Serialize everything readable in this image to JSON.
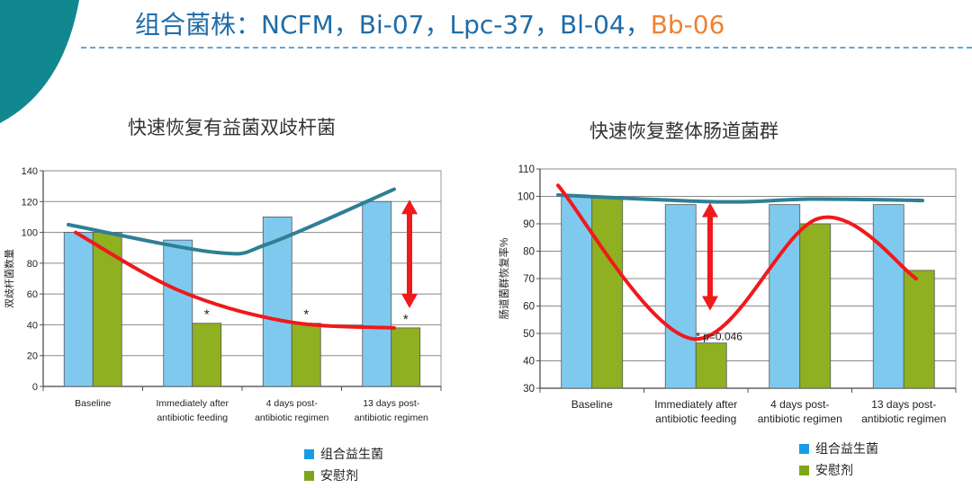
{
  "slide_title": {
    "prefix": "组合菌株：NCFM，Bi-07，Lpc-37，Bl-04，",
    "highlight": "Bb-06"
  },
  "colors": {
    "probiotic": "#7fc9ef",
    "placebo": "#8fb021",
    "trend_probiotic": "#2f7f95",
    "trend_placebo": "#f0191c",
    "teal_corner": "#11878f",
    "title_blue": "#1f6ca8",
    "title_orange": "#ef8133"
  },
  "chart_data": [
    {
      "type": "bar",
      "title": "快速恢复有益菌双歧杆菌",
      "ylabel": "双歧杆菌数量",
      "xlabel": "",
      "ylim": [
        0,
        140
      ],
      "yticks": [
        "0",
        "20",
        "40",
        "60",
        "80",
        "100",
        "120",
        "140"
      ],
      "categories": [
        [
          "Baseline"
        ],
        [
          "Immediately after",
          "antibiotic feeding"
        ],
        [
          "4 days post-",
          "antibiotic regimen"
        ],
        [
          "13 days post-",
          "antibiotic regimen"
        ]
      ],
      "series": [
        {
          "name": "组合益生菌",
          "values": [
            100,
            95,
            110,
            120
          ]
        },
        {
          "name": "安慰剂",
          "values": [
            100,
            41,
            41,
            38
          ]
        }
      ],
      "annotations": [
        "*",
        "*",
        "*"
      ],
      "trend_lines": {
        "probiotic": [
          105,
          87,
          93,
          128
        ],
        "placebo": [
          100,
          62,
          42,
          38
        ]
      },
      "arrow_range": [
        120,
        52
      ],
      "legend": [
        "组合益生菌",
        "安慰剂"
      ],
      "grid": true,
      "legend_position": "bottom"
    },
    {
      "type": "bar",
      "title": "快速恢复整体肠道菌群",
      "ylabel": "肠道菌群恢复率%",
      "xlabel": "",
      "ylim": [
        30,
        110
      ],
      "yticks": [
        "30",
        "40",
        "50",
        "60",
        "70",
        "80",
        "90",
        "100",
        "110"
      ],
      "categories": [
        [
          "Baseline"
        ],
        [
          "Immediately after",
          "antibiotic feeding"
        ],
        [
          "4 days post-",
          "antibiotic regimen"
        ],
        [
          "13 days post-",
          "antibiotic regimen"
        ]
      ],
      "series": [
        {
          "name": "组合益生菌",
          "values": [
            100,
            97,
            97,
            97
          ]
        },
        {
          "name": "安慰剂",
          "values": [
            100,
            46.5,
            90,
            73
          ]
        }
      ],
      "annotations": [
        "* p=0.046"
      ],
      "trend_lines": {
        "probiotic": [
          100.5,
          98,
          99,
          98.5
        ],
        "placebo": [
          104,
          48,
          92,
          70
        ]
      },
      "arrow_range": [
        97,
        59
      ],
      "legend": [
        "组合益生菌",
        "安慰剂"
      ],
      "grid": true,
      "legend_position": "bottom"
    }
  ]
}
